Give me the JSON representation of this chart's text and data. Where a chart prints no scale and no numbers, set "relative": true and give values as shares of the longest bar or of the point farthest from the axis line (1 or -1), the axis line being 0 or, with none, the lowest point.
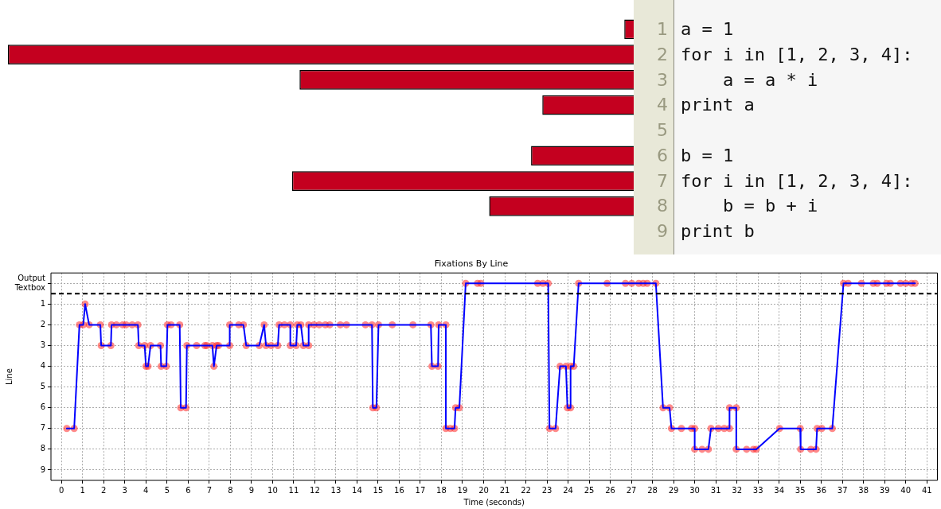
{
  "chart_data": [
    {
      "type": "bar",
      "orientation": "horizontal",
      "relative": true,
      "color": "#c4001f",
      "legend": false,
      "categories": [
        "1",
        "2",
        "3",
        "4",
        "5",
        "6",
        "7",
        "8",
        "9"
      ],
      "y2_categories": [
        "a = 1",
        "for i in [1, 2, 3, 4]:",
        "    a = a * i",
        "print a",
        null,
        "b = 1",
        "for i in [1, 2, 3, 4]:",
        "    b = b + i",
        "print b"
      ],
      "values": [
        0.015,
        1,
        0.534,
        0.146,
        0,
        0.164,
        0.546,
        0.231,
        0
      ]
    },
    {
      "type": "line",
      "title": "Fixations By Line",
      "xlabel": "Time (seconds)",
      "ylabel": "Line",
      "marker": "circle",
      "line_style": "solid",
      "grid": true,
      "legend": false,
      "xlim": [
        -0.5,
        41.5
      ],
      "xticks": [
        0,
        1,
        2,
        3,
        4,
        5,
        6,
        7,
        8,
        9,
        10,
        11,
        12,
        13,
        14,
        15,
        16,
        17,
        18,
        19,
        20,
        21,
        22,
        23,
        24,
        25,
        26,
        27,
        28,
        29,
        30,
        31,
        32,
        33,
        34,
        35,
        36,
        37,
        38,
        39,
        40,
        41
      ],
      "ylim": [
        9.5,
        -0.5
      ],
      "yticks": [
        {
          "value": 0,
          "label": "Output Textbox"
        },
        1,
        2,
        3,
        4,
        5,
        6,
        7,
        8,
        9
      ],
      "ref_lines": [
        {
          "axis": "y",
          "value": 0.5,
          "color": "#000000",
          "line_style": "dashed"
        }
      ],
      "series": [
        {
          "color": "#0000ff",
          "x": [
            0.25,
            0.6,
            0.85,
            1.03,
            1.12,
            1.31,
            1.84,
            1.88,
            2.34,
            2.37,
            2.6,
            2.9,
            3.06,
            3.35,
            3.62,
            3.66,
            3.94,
            4.0,
            4.1,
            4.22,
            4.69,
            4.72,
            4.97,
            5.02,
            5.19,
            5.6,
            5.65,
            5.9,
            5.94,
            6.4,
            6.79,
            6.88,
            7.15,
            7.22,
            7.35,
            7.44,
            7.97,
            7.97,
            8.4,
            8.62,
            8.75,
            9.37,
            9.6,
            9.69,
            9.94,
            10.25,
            10.31,
            10.56,
            10.84,
            10.84,
            11.12,
            11.17,
            11.34,
            11.46,
            11.71,
            11.71,
            11.96,
            12.21,
            12.5,
            12.71,
            13.21,
            13.5,
            14.4,
            14.71,
            14.75,
            14.92,
            15.02,
            15.67,
            16.65,
            17.5,
            17.55,
            17.84,
            17.87,
            18.21,
            18.21,
            18.42,
            18.62,
            18.67,
            18.85,
            19.15,
            19.71,
            19.87,
            22.56,
            22.81,
            23.06,
            23.12,
            23.41,
            23.62,
            23.9,
            23.97,
            24.12,
            24.12,
            24.27,
            24.5,
            25.85,
            26.72,
            27.02,
            27.35,
            27.56,
            27.75,
            28.16,
            28.5,
            28.81,
            28.9,
            29.37,
            29.85,
            30.0,
            30.0,
            30.35,
            30.65,
            30.77,
            31.12,
            31.4,
            31.65,
            31.65,
            31.97,
            31.97,
            32.46,
            32.78,
            32.92,
            34.02,
            35.0,
            35.02,
            35.5,
            35.75,
            35.8,
            36.02,
            36.52,
            37.05,
            37.27,
            37.9,
            38.46,
            38.65,
            39.09,
            39.27,
            39.75,
            40.0,
            40.27,
            40.44
          ],
          "values": [
            7,
            7,
            2,
            2,
            1,
            2,
            2,
            3,
            3,
            2,
            2,
            2,
            2,
            2,
            2,
            3,
            3,
            4,
            4,
            3,
            3,
            4,
            4,
            2,
            2,
            2,
            6,
            6,
            3,
            3,
            3,
            3,
            3,
            4,
            3,
            3,
            3,
            2,
            2,
            2,
            3,
            3,
            2,
            3,
            3,
            3,
            2,
            2,
            2,
            3,
            3,
            2,
            2,
            3,
            3,
            2,
            2,
            2,
            2,
            2,
            2,
            2,
            2,
            2,
            6,
            6,
            2,
            2,
            2,
            2,
            4,
            4,
            2,
            2,
            7,
            7,
            7,
            6,
            6,
            0,
            0,
            0,
            0,
            0,
            0,
            7,
            7,
            4,
            4,
            6,
            6,
            4,
            4,
            0,
            0,
            0,
            0,
            0,
            0,
            0,
            0,
            6,
            6,
            7,
            7,
            7,
            7,
            8,
            8,
            8,
            7,
            7,
            7,
            7,
            6,
            6,
            8,
            8,
            8,
            8,
            7,
            7,
            8,
            8,
            8,
            7,
            7,
            7,
            0,
            0,
            0,
            0,
            0,
            0,
            0,
            0,
            0,
            0,
            0
          ]
        }
      ]
    }
  ]
}
